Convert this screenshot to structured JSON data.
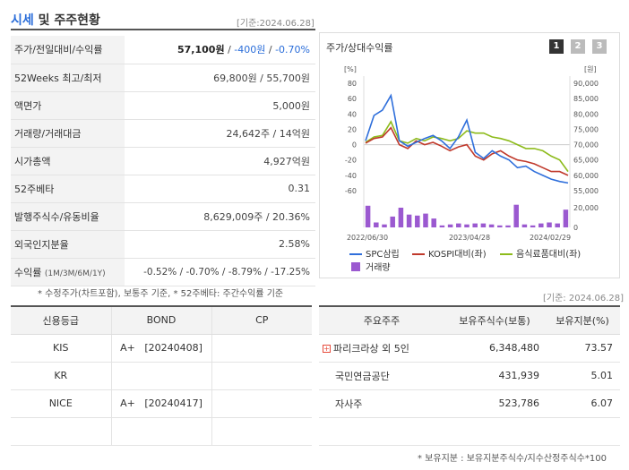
{
  "header": {
    "title_accent": "시세",
    "title_rest": " 및 주주현황",
    "base_date": "[기준:2024.06.28]"
  },
  "stats": [
    {
      "label": "주가/전일대비/수익률",
      "price": "57,100원",
      "sep1": " / ",
      "change": "-400원",
      "sep2": " / ",
      "rate": "-0.70%"
    },
    {
      "label": "52Weeks 최고/최저",
      "value": "69,800원 / 55,700원"
    },
    {
      "label": "액면가",
      "value": "5,000원"
    },
    {
      "label": "거래량/거래대금",
      "value": "24,642주 / 14억원"
    },
    {
      "label": "시가총액",
      "value": "4,927억원"
    },
    {
      "label": "52주베타",
      "value": "0.31"
    },
    {
      "label": "발행주식수/유동비율",
      "value": "8,629,009주 / 20.36%"
    },
    {
      "label": "외국인지분율",
      "value": "2.58%"
    },
    {
      "label": "수익률",
      "label_sub": "(1M/3M/6M/1Y)",
      "value": "-0.52% / -0.70% / -8.79% / -17.25%"
    }
  ],
  "footnote_left": "* 수정주가(차트포함), 보통주 기준, * 52주베타: 주간수익률 기준",
  "chart_panel": {
    "title": "주가/상대수익률",
    "pages": [
      "1",
      "2",
      "3"
    ],
    "colors": {
      "spc": "#2f6fdb",
      "kospi": "#c0392b",
      "food": "#8dbb1b",
      "volume": "#9b59d0"
    }
  },
  "chart_data": {
    "type": "line",
    "left_unit": "[%]",
    "right_unit": "[원]",
    "left_ticks": [
      80,
      60,
      40,
      20,
      0,
      -20,
      -40,
      -60
    ],
    "left_ylim": [
      -60,
      80
    ],
    "right_ticks": [
      "90,000",
      "85,000",
      "80,000",
      "75,000",
      "70,000",
      "65,000",
      "60,000",
      "55,000"
    ],
    "volume_ticks": [
      "20,000",
      "0"
    ],
    "x_labels": [
      "2022/06/30",
      "2023/04/28",
      "2024/02/29"
    ],
    "series": [
      {
        "name": "SPC삼립",
        "values": [
          5,
          38,
          45,
          64,
          5,
          -2,
          3,
          8,
          12,
          5,
          -5,
          10,
          32,
          -10,
          -18,
          -8,
          -15,
          -20,
          -30,
          -28,
          -35,
          -40,
          -45,
          -48,
          -50
        ]
      },
      {
        "name": "KOSPI대비(좌)",
        "values": [
          2,
          8,
          10,
          22,
          0,
          -5,
          5,
          0,
          3,
          -2,
          -8,
          -3,
          0,
          -15,
          -20,
          -12,
          -8,
          -15,
          -20,
          -22,
          -25,
          -30,
          -35,
          -35,
          -40
        ]
      },
      {
        "name": "음식료품대비(좌)",
        "values": [
          3,
          10,
          12,
          30,
          5,
          2,
          8,
          5,
          10,
          8,
          5,
          8,
          18,
          15,
          15,
          10,
          8,
          5,
          0,
          -5,
          -5,
          -8,
          -15,
          -20,
          -35
        ]
      }
    ],
    "volume": {
      "name": "거래량",
      "values": [
        22000,
        5000,
        3000,
        11000,
        20000,
        13000,
        12000,
        14000,
        9000,
        2000,
        3000,
        4000,
        3000,
        4000,
        4000,
        3000,
        2000,
        2000,
        25000,
        3000,
        2000,
        4000,
        5000,
        4000,
        18000
      ]
    }
  },
  "footnote_right_date": "[기준: 2024.06.28]",
  "credit": {
    "headers": [
      "신용등급",
      "BOND",
      "CP"
    ],
    "rows": [
      {
        "agency": "KIS",
        "bond": "A+   [20240408]",
        "cp": ""
      },
      {
        "agency": "KR",
        "bond": "",
        "cp": ""
      },
      {
        "agency": "NICE",
        "bond": "A+   [20240417]",
        "cp": ""
      },
      {
        "agency": "",
        "bond": "",
        "cp": ""
      }
    ]
  },
  "holders": {
    "headers": [
      "주요주주",
      "보유주식수(보통)",
      "보유지분(%)"
    ],
    "rows": [
      {
        "name": "파리크라상 외 5인",
        "expandable": true,
        "shares": "6,348,480",
        "pct": "73.57"
      },
      {
        "name": "국민연금공단",
        "expandable": false,
        "shares": "431,939",
        "pct": "5.01"
      },
      {
        "name": "자사주",
        "expandable": false,
        "shares": "523,786",
        "pct": "6.07"
      },
      {
        "name": "",
        "expandable": false,
        "shares": "",
        "pct": ""
      }
    ]
  },
  "footnote_bottom": "* 보유지분 : 보유지분주식수/지수산정주식수*100"
}
